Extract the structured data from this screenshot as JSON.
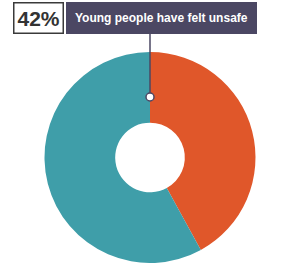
{
  "chart_data": {
    "type": "pie",
    "categories": [
      "Young people have felt unsafe",
      null
    ],
    "values": [
      42,
      58
    ],
    "value_labels": [
      "42%",
      null
    ],
    "colors": [
      "#e0572a",
      "#3f9ea9"
    ]
  }
}
